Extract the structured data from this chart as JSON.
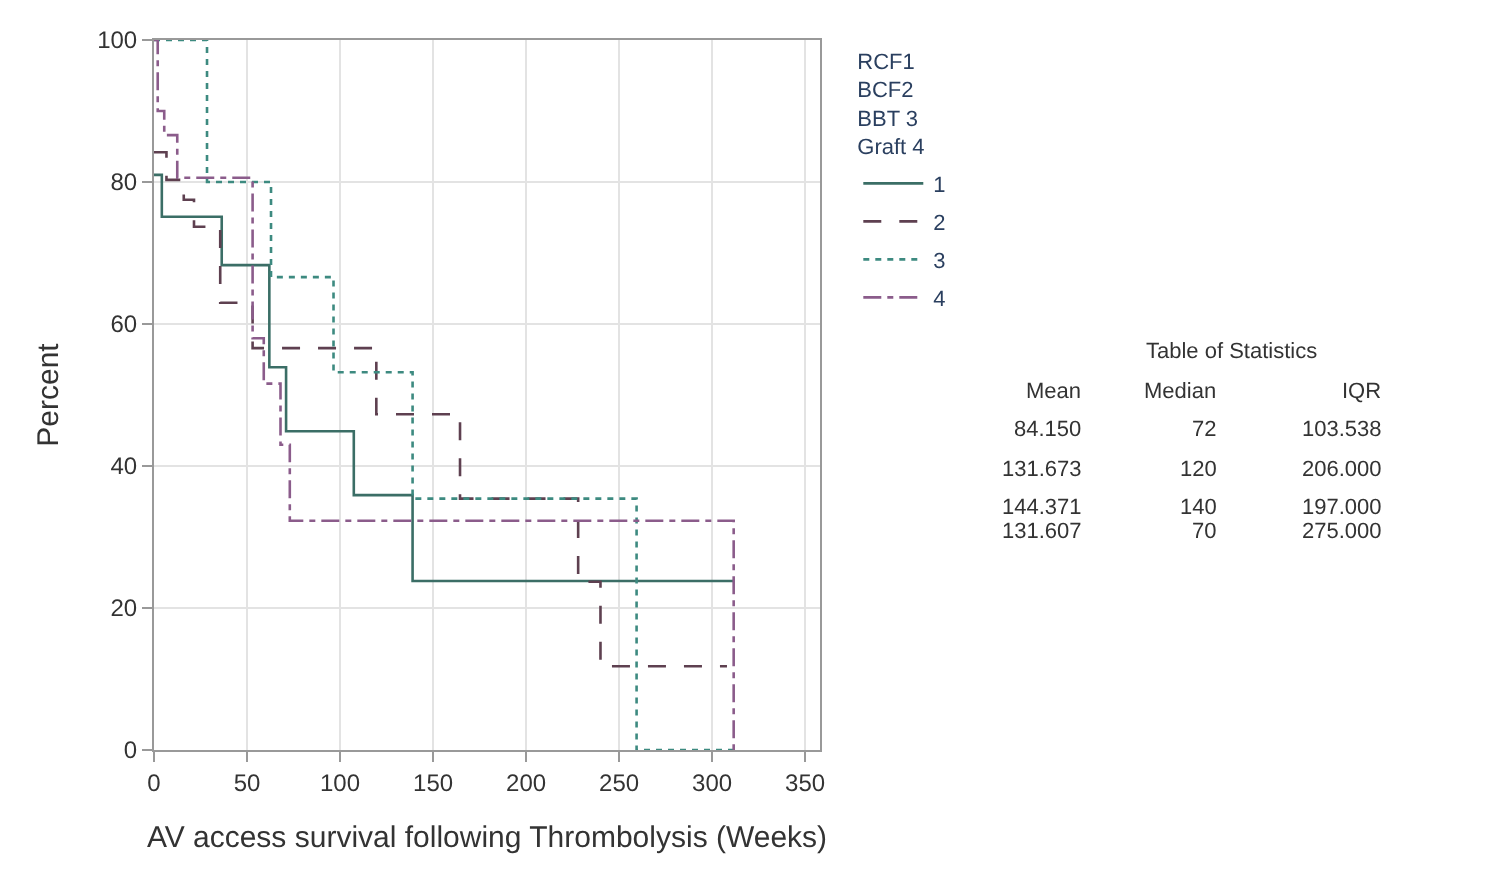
{
  "chart_data": {
    "type": "step",
    "xlabel": "AV access survival following Thrombolysis (Weeks)",
    "ylabel": "Percent",
    "legend_title": "RCF1\nBCF2\nBBT 3\nGraft 4",
    "legend": "right",
    "grid": true,
    "xlim": [
      0,
      358
    ],
    "xticks": [
      0,
      50,
      100,
      150,
      200,
      250,
      300,
      350
    ],
    "ylim": [
      0,
      100
    ],
    "yticks": [
      0,
      20,
      40,
      60,
      80,
      100
    ],
    "series": [
      {
        "name": "1",
        "color": "#3b6e66",
        "line_style": "solid",
        "x": [
          0,
          4.2,
          36.4,
          62,
          71,
          107.4,
          139,
          311.6
        ],
        "values": [
          81,
          75.1,
          68.3,
          53.9,
          44.9,
          35.9,
          23.8,
          23.8
        ]
      },
      {
        "name": "2",
        "color": "#5e4050",
        "line_style": "dashed",
        "x": [
          0,
          6.7,
          16,
          21.5,
          35.6,
          53,
          119.5,
          164.5,
          228,
          240,
          308
        ],
        "values": [
          84.2,
          80.3,
          77.5,
          73.7,
          63,
          56.6,
          47.3,
          35.4,
          23.7,
          11.8,
          11.8
        ]
      },
      {
        "name": "3",
        "color": "#3d8a80",
        "line_style": "dotted",
        "x": [
          0,
          28.5,
          62.9,
          96.5,
          139,
          259.4,
          311.6
        ],
        "values": [
          100,
          80,
          66.6,
          53.2,
          35.4,
          0,
          0
        ]
      },
      {
        "name": "4",
        "color": "#8b5c8b",
        "line_style": "dashdot",
        "x": [
          0,
          2,
          5.5,
          12.5,
          53,
          59,
          68,
          73,
          311.6
        ],
        "values": [
          100,
          90,
          86.6,
          80.6,
          58,
          51.6,
          43,
          32.3,
          0
        ]
      }
    ],
    "annotations": [
      "Table of Statistics",
      "Mean\tMedian\tIQR",
      "84.150\t72\t103.538",
      "131.673\t120\t206.000",
      "144.371\t140\t197.000",
      "131.607\t70\t275.000"
    ]
  }
}
